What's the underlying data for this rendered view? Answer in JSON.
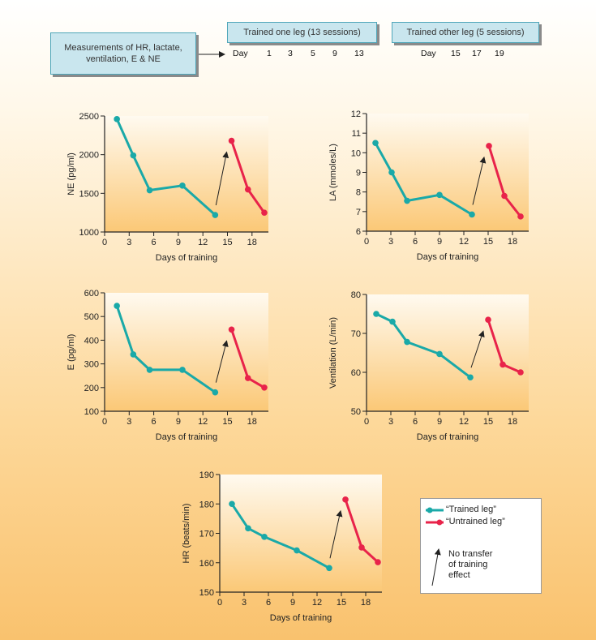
{
  "header": {
    "measure_box": "Measurements of HR, lactate, ventilation, E & NE",
    "box1": "Trained one leg (13 sessions)",
    "box2": "Trained other leg (5 sessions)",
    "day_label": "Day",
    "days1": [
      "1",
      "3",
      "5",
      "9",
      "13"
    ],
    "days2": [
      "15",
      "17",
      "19"
    ]
  },
  "colors": {
    "trained": "#1aa9a8",
    "untrained": "#e8234a",
    "axis": "#222222"
  },
  "legend": {
    "trained": "“Trained leg”",
    "untrained": "“Untrained leg”",
    "note": [
      "No transfer",
      "of training",
      "effect"
    ]
  },
  "chart_data": [
    {
      "type": "line",
      "id": "ne",
      "ylabel": "NE (pg/ml)",
      "xlabel": "Days of training",
      "ylim": [
        1000,
        2500
      ],
      "yticks": [
        1000,
        1500,
        2000,
        2500
      ],
      "xlim": [
        0,
        20
      ],
      "xticks": [
        0,
        3,
        6,
        9,
        12,
        15,
        18
      ],
      "series": [
        {
          "name": "“Trained leg”",
          "points": [
            [
              1.5,
              2460
            ],
            [
              3.5,
              1990
            ],
            [
              5.5,
              1540
            ],
            [
              9.5,
              1600
            ],
            [
              13.5,
              1220
            ]
          ]
        },
        {
          "name": "“Untrained leg”",
          "points": [
            [
              15.5,
              2180
            ],
            [
              17.5,
              1550
            ],
            [
              19.5,
              1250
            ]
          ]
        }
      ]
    },
    {
      "type": "line",
      "id": "la",
      "ylabel": "LA (mmoles/L)",
      "xlabel": "Days of training",
      "ylim": [
        6,
        12
      ],
      "yticks": [
        6,
        7,
        8,
        9,
        10,
        11,
        12
      ],
      "xlim": [
        0,
        20
      ],
      "xticks": [
        0,
        3,
        6,
        9,
        12,
        15,
        18
      ],
      "series": [
        {
          "name": "“Trained leg”",
          "points": [
            [
              1.1,
              10.5
            ],
            [
              3.1,
              9.0
            ],
            [
              5.0,
              7.55
            ],
            [
              9.0,
              7.85
            ],
            [
              13.0,
              6.85
            ]
          ]
        },
        {
          "name": "“Untrained leg”",
          "points": [
            [
              15.1,
              10.35
            ],
            [
              17.0,
              7.8
            ],
            [
              19.0,
              6.75
            ]
          ]
        }
      ]
    },
    {
      "type": "line",
      "id": "e",
      "ylabel": "E (pg/ml)",
      "xlabel": "Days of training",
      "ylim": [
        100,
        600
      ],
      "yticks": [
        100,
        200,
        300,
        400,
        500,
        600
      ],
      "xlim": [
        0,
        20
      ],
      "xticks": [
        0,
        3,
        6,
        9,
        12,
        15,
        18
      ],
      "series": [
        {
          "name": "“Trained leg”",
          "points": [
            [
              1.5,
              545
            ],
            [
              3.5,
              340
            ],
            [
              5.5,
              275
            ],
            [
              9.5,
              275
            ],
            [
              13.5,
              180
            ]
          ]
        },
        {
          "name": "“Untrained leg”",
          "points": [
            [
              15.5,
              445
            ],
            [
              17.5,
              240
            ],
            [
              19.5,
              200
            ]
          ]
        }
      ]
    },
    {
      "type": "line",
      "id": "ve",
      "ylabel": "Ventilation (L/min)",
      "xlabel": "Days of training",
      "ylim": [
        50,
        80
      ],
      "yticks": [
        50,
        60,
        70,
        80
      ],
      "xlim": [
        0,
        20
      ],
      "xticks": [
        0,
        3,
        6,
        9,
        12,
        15,
        18
      ],
      "series": [
        {
          "name": "“Trained leg”",
          "points": [
            [
              1.2,
              75.0
            ],
            [
              3.2,
              73.0
            ],
            [
              5.0,
              67.8
            ],
            [
              9.0,
              64.7
            ],
            [
              12.8,
              58.7
            ]
          ]
        },
        {
          "name": "“Untrained leg”",
          "points": [
            [
              15.0,
              73.5
            ],
            [
              16.8,
              62.0
            ],
            [
              19.0,
              60.0
            ]
          ]
        }
      ]
    },
    {
      "type": "line",
      "id": "hr",
      "ylabel": "HR (beats/min)",
      "xlabel": "Days of training",
      "ylim": [
        150,
        190
      ],
      "yticks": [
        150,
        160,
        170,
        180,
        190
      ],
      "xlim": [
        0,
        20
      ],
      "xticks": [
        0,
        3,
        6,
        9,
        12,
        15,
        18
      ],
      "series": [
        {
          "name": "“Trained leg”",
          "points": [
            [
              1.5,
              180
            ],
            [
              3.5,
              171.7
            ],
            [
              5.5,
              168.8
            ],
            [
              9.5,
              164.2
            ],
            [
              13.5,
              158.2
            ]
          ]
        },
        {
          "name": "“Untrained leg”",
          "points": [
            [
              15.5,
              181.5
            ],
            [
              17.5,
              165.2
            ],
            [
              19.5,
              160.2
            ]
          ]
        }
      ]
    }
  ]
}
